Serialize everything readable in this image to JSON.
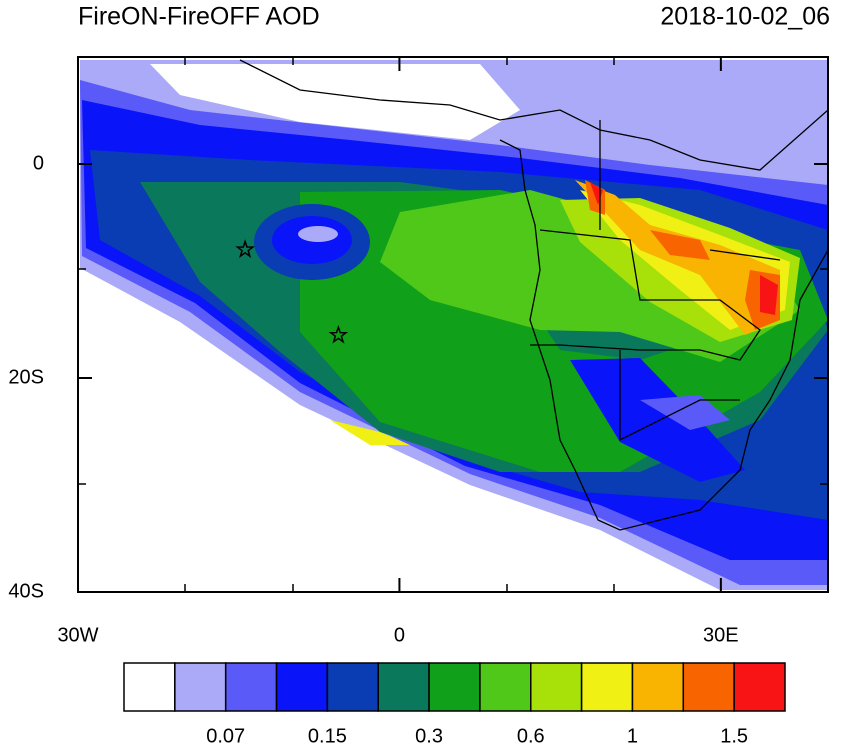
{
  "header": {
    "title": "FireON-FireOFF AOD",
    "time": "2018-10-02_06"
  },
  "map": {
    "lon_range": [
      -30,
      40
    ],
    "lat_range": [
      -40,
      10
    ],
    "lon_ticks": [
      {
        "value": -30,
        "label": "30W"
      },
      0,
      {
        "value": 30,
        "label": "30E"
      }
    ],
    "lat_ticks": [
      0,
      {
        "value": -20,
        "label": "20S"
      },
      {
        "value": -40,
        "label": "40S"
      }
    ],
    "markers": [
      {
        "lon": -14.4,
        "lat": -8.0
      },
      {
        "lon": -5.7,
        "lat": -16.0
      }
    ]
  },
  "colorbar": {
    "colors": [
      "#ffffff",
      "#aaaaf8",
      "#5a5af8",
      "#0a14f8",
      "#0a3cb4",
      "#0a785a",
      "#10a01a",
      "#50c81a",
      "#a8e00a",
      "#f0f014",
      "#f8b400",
      "#f86400",
      "#f81414"
    ],
    "labels": [
      0.07,
      0.15,
      0.3,
      0.6,
      1,
      1.5
    ]
  }
}
